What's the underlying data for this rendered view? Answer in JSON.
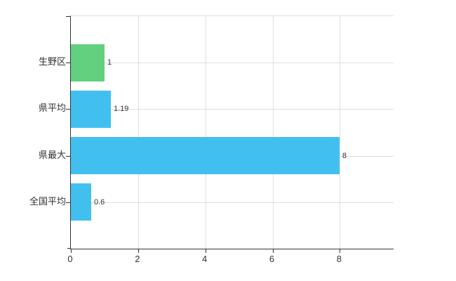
{
  "chart_data": {
    "type": "bar",
    "orientation": "horizontal",
    "title": "",
    "xlabel": "",
    "ylabel": "",
    "categories": [
      "生野区",
      "県平均",
      "県最大",
      "全国平均"
    ],
    "values": [
      1,
      1.19,
      8,
      0.6
    ],
    "value_labels": [
      "1",
      "1.19",
      "8",
      "0.6"
    ],
    "bar_colors": [
      "#62d07e",
      "#41c0f0",
      "#41c0f0",
      "#41c0f0"
    ],
    "x_ticks": [
      0,
      2,
      4,
      6,
      8
    ],
    "x_tick_labels": [
      "0",
      "2",
      "4",
      "6",
      "8"
    ],
    "xlim": [
      0,
      9.6
    ],
    "grid": true,
    "legend": "none"
  },
  "colors": {
    "bar_blue": "#41c0f0",
    "bar_green": "#62d07e",
    "axis": "#333333",
    "grid": "#dddddd",
    "background": "#ffffff",
    "text": "#333333"
  }
}
